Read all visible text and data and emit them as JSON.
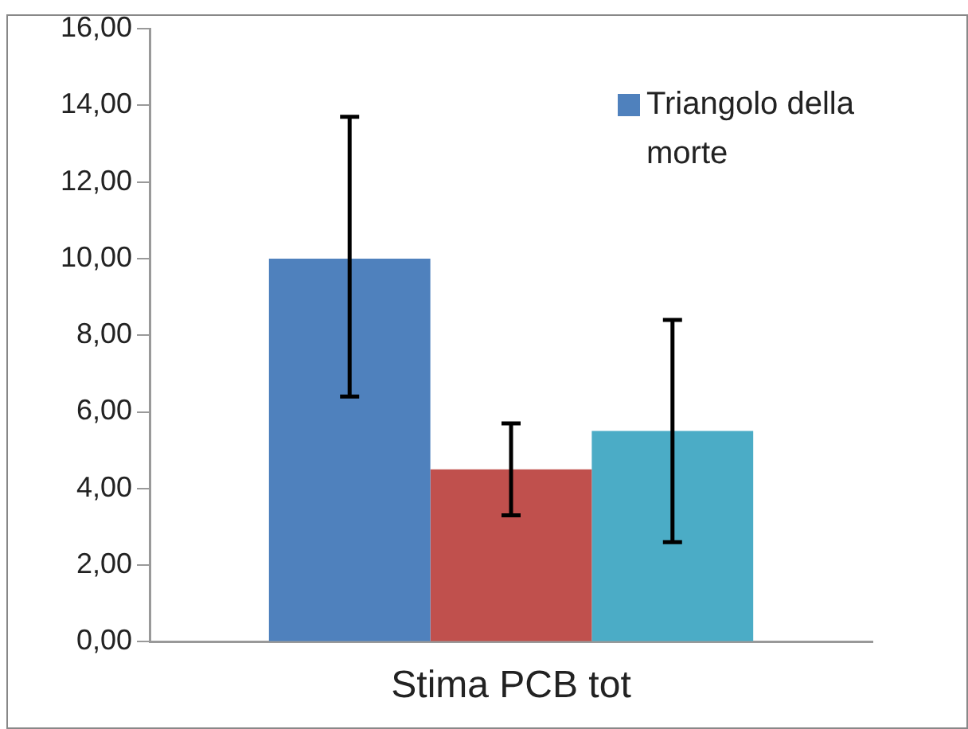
{
  "chart_data": {
    "type": "bar",
    "categories": [
      "Stima PCB tot"
    ],
    "series": [
      {
        "name": "Triangolo della morte",
        "color": "#4f81bd",
        "values": [
          10.0
        ],
        "errors": [
          [
            6.4,
            13.7
          ]
        ]
      },
      {
        "color": "#c0504d",
        "values": [
          4.5
        ],
        "errors": [
          [
            3.3,
            5.7
          ]
        ]
      },
      {
        "color": "#4bacc6",
        "values": [
          5.5
        ],
        "errors": [
          [
            2.6,
            8.4
          ]
        ]
      }
    ],
    "ylim": [
      0,
      16
    ],
    "yticks": [
      {
        "value": 0,
        "label": "0,00"
      },
      {
        "value": 2,
        "label": "2,00"
      },
      {
        "value": 4,
        "label": "4,00"
      },
      {
        "value": 6,
        "label": "6,00"
      },
      {
        "value": 8,
        "label": "8,00"
      },
      {
        "value": 10,
        "label": "10,00"
      },
      {
        "value": 12,
        "label": "12,00"
      },
      {
        "value": 14,
        "label": "14,00"
      },
      {
        "value": 16,
        "label": "16,00"
      }
    ],
    "grid": false,
    "legend": "top right"
  }
}
